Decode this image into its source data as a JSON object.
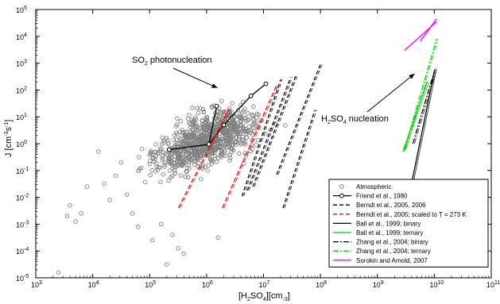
{
  "chart_data": {
    "type": "scatter",
    "log_x": true,
    "log_y": true,
    "xlim": [
      1000,
      100000000000
    ],
    "ylim": [
      1e-05,
      100000
    ],
    "x_ticks": [
      {
        "exp": 3,
        "label": "10",
        "sup": "3"
      },
      {
        "exp": 4,
        "label": "10",
        "sup": "4"
      },
      {
        "exp": 5,
        "label": "10",
        "sup": "5"
      },
      {
        "exp": 6,
        "label": "10",
        "sup": "6"
      },
      {
        "exp": 7,
        "label": "10",
        "sup": "7"
      },
      {
        "exp": 8,
        "label": "10",
        "sup": "8"
      },
      {
        "exp": 9,
        "label": "10",
        "sup": "9"
      },
      {
        "exp": 10,
        "label": "10",
        "sup": "10"
      },
      {
        "exp": 11,
        "label": "10",
        "sup": "11"
      }
    ],
    "y_ticks": [
      {
        "exp": -5,
        "label": "10",
        "sup": "-5"
      },
      {
        "exp": -4,
        "label": "10",
        "sup": "-4"
      },
      {
        "exp": -3,
        "label": "10",
        "sup": "-3"
      },
      {
        "exp": -2,
        "label": "10",
        "sup": "-2"
      },
      {
        "exp": -1,
        "label": "10",
        "sup": "-1"
      },
      {
        "exp": 0,
        "label": "10",
        "sup": "0"
      },
      {
        "exp": 1,
        "label": "10",
        "sup": "1"
      },
      {
        "exp": 2,
        "label": "10",
        "sup": "2"
      },
      {
        "exp": 3,
        "label": "10",
        "sup": "3"
      },
      {
        "exp": 4,
        "label": "10",
        "sup": "4"
      },
      {
        "exp": 5,
        "label": "10",
        "sup": "5"
      }
    ],
    "xlabel": {
      "parts": [
        "[H",
        "2",
        "SO",
        "4",
        "][cm",
        "-3",
        "]"
      ]
    },
    "ylabel": {
      "parts": [
        "J [cm",
        "-3",
        "s",
        "-1",
        "]"
      ]
    },
    "annotations": [
      {
        "id": "so2",
        "parts": [
          "SO",
          "2",
          " photonucleation"
        ],
        "arrow_to": [
          1200000,
          80
        ]
      },
      {
        "id": "h2so4",
        "parts": [
          "H",
          "2",
          "SO",
          "4",
          " nucleation"
        ],
        "arrow_to": [
          4500000000,
          700
        ]
      }
    ],
    "legend": {
      "position": "bottom-right",
      "entries": [
        {
          "label": "Atmospheric",
          "color": "#808080",
          "style": "circle"
        },
        {
          "label": "Friend et al., 1980",
          "color": "#000000",
          "style": "line-circle"
        },
        {
          "label": "Berndt et al., 2005, 2006",
          "color": "#000000",
          "style": "dashed"
        },
        {
          "label": "Berndt et al., 2005; scaled to T = 273 K",
          "color": "#ff0000",
          "style": "dashed"
        },
        {
          "label": "Ball et al., 1999; binary",
          "color": "#000000",
          "style": "solid"
        },
        {
          "label": "Ball et al., 1999; ternary",
          "color": "#00cc00",
          "style": "solid"
        },
        {
          "label": "Zhang et al., 2004; binary",
          "color": "#000000",
          "style": "dashdot"
        },
        {
          "label": "Zhang et al., 2004; ternary",
          "color": "#00cc00",
          "style": "dashdot"
        },
        {
          "label": "Sorokin and Arnold, 2007",
          "color": "#ff00ff",
          "style": "solid"
        }
      ]
    },
    "series": [
      {
        "name": "Friend et al., 1980",
        "color": "#000000",
        "marker": "circle",
        "x": [
          220000,
          1100000,
          2000000,
          6000000,
          11000000
        ],
        "y": [
          0.6,
          0.95,
          5,
          60,
          170
        ]
      },
      {
        "name": "Friend et al., 1980",
        "color": "#000000",
        "marker": "circle",
        "x": [
          220000,
          1100000,
          1500000
        ],
        "y": [
          0.6,
          0.95,
          25
        ]
      },
      {
        "name": "Berndt et al., 2005, 2006",
        "color": "#000000",
        "dash": "5,3",
        "x": [
          4200000,
          20000000
        ],
        "y": [
          0.011,
          250
        ]
      },
      {
        "name": "Berndt et al., 2005, 2006",
        "color": "#000000",
        "dash": "5,3",
        "x": [
          5200000,
          30000000
        ],
        "y": [
          0.018,
          300
        ]
      },
      {
        "name": "Berndt et al., 2005, 2006",
        "color": "#000000",
        "dash": "5,3",
        "x": [
          6500000,
          38000000
        ],
        "y": [
          0.025,
          400
        ]
      },
      {
        "name": "Berndt et al., 2005, 2006",
        "color": "#000000",
        "dash": "5,3",
        "x": [
          17000000,
          100000000
        ],
        "y": [
          0.07,
          900
        ]
      },
      {
        "name": "Berndt et al., 2005, 2006",
        "color": "#000000",
        "dash": "5,3",
        "x": [
          22000000,
          80000000
        ],
        "y": [
          0.004,
          18
        ]
      },
      {
        "name": "Berndt et al., 2005; scaled to T = 273 K",
        "color": "#ff0000",
        "dash": "6,3",
        "x": [
          320000,
          2500000
        ],
        "y": [
          0.004,
          20
        ]
      },
      {
        "name": "Berndt et al., 2005; scaled to T = 273 K",
        "color": "#ff0000",
        "dash": "6,3",
        "x": [
          1900000,
          17000000
        ],
        "y": [
          0.004,
          150
        ]
      },
      {
        "name": "Ball et al., 1999; binary",
        "color": "#000000",
        "dash": "",
        "x": [
          3800000000,
          10000000000
        ],
        "y": [
          0.02,
          500
        ]
      },
      {
        "name": "Ball et al., 1999; ternary",
        "color": "#00cc00",
        "dash": "",
        "x": [
          2800000000,
          7500000000
        ],
        "y": [
          0.5,
          200
        ]
      },
      {
        "name": "Zhang et al., 2004; binary",
        "color": "#000000",
        "dash": "7,2,2,2",
        "x": [
          4200000000,
          10500000000
        ],
        "y": [
          1,
          700
        ]
      },
      {
        "name": "Zhang et al., 2004; ternary",
        "color": "#00cc00",
        "dash": "7,2,2,2",
        "x": [
          3000000000,
          11000000000
        ],
        "y": [
          0.6,
          8000
        ]
      },
      {
        "name": "Sorokin and Arnold, 2007",
        "color": "#ff00ff",
        "dash": "",
        "x": [
          3000000000,
          11000000000
        ],
        "y": [
          3000,
          35000
        ]
      }
    ]
  }
}
